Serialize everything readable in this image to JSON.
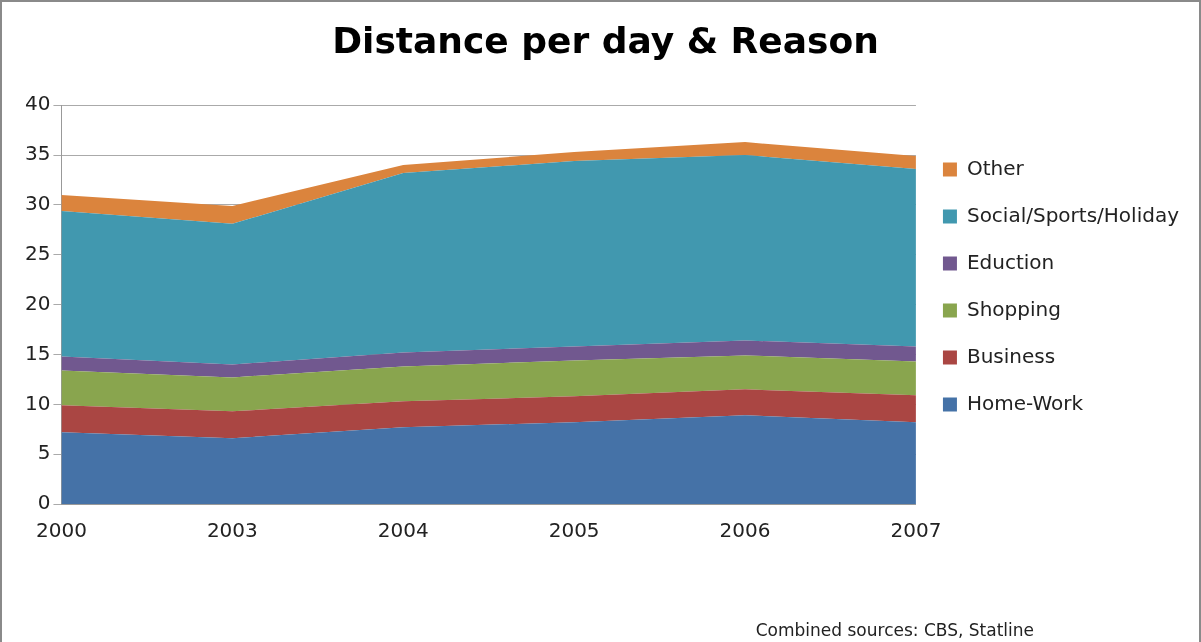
{
  "chart_data": {
    "type": "area",
    "title": "Distance per day & Reason",
    "categories": [
      "2000",
      "2003",
      "2004",
      "2005",
      "2006",
      "2007"
    ],
    "stacked": true,
    "series": [
      {
        "name": "Home-Work",
        "color": "#4572a7",
        "values": [
          7.2,
          6.6,
          7.7,
          8.2,
          8.9,
          8.2
        ]
      },
      {
        "name": "Business",
        "color": "#aa4643",
        "values": [
          2.7,
          2.7,
          2.6,
          2.6,
          2.6,
          2.7
        ]
      },
      {
        "name": "Shopping",
        "color": "#89a54e",
        "values": [
          3.5,
          3.4,
          3.5,
          3.6,
          3.4,
          3.4
        ]
      },
      {
        "name": "Eduction",
        "color": "#71588f",
        "values": [
          1.4,
          1.3,
          1.4,
          1.4,
          1.5,
          1.5
        ]
      },
      {
        "name": "Social/Sports/Holiday",
        "color": "#4198af",
        "values": [
          14.6,
          14.1,
          18.0,
          18.6,
          18.6,
          17.8
        ]
      },
      {
        "name": "Other",
        "color": "#db843d",
        "values": [
          1.6,
          1.8,
          0.8,
          0.9,
          1.3,
          1.3
        ]
      }
    ],
    "ylim": [
      0,
      40
    ],
    "yticks": [
      0,
      5,
      10,
      15,
      20,
      25,
      30,
      35,
      40
    ],
    "grid": "y",
    "legend": "right",
    "annotations": [
      "Combined sources: CBS, Statline"
    ]
  }
}
